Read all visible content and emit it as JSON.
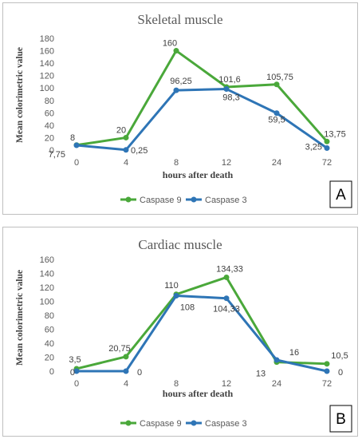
{
  "colors": {
    "caspase9": "#4aa83a",
    "caspase3": "#2e75b6"
  },
  "chart_data": [
    {
      "type": "line",
      "panel_label": "A",
      "title": "Skeletal muscle",
      "xlabel": "hours after death",
      "ylabel": "Mean colorimetric value",
      "categories": [
        "0",
        "4",
        "8",
        "12",
        "24",
        "72"
      ],
      "ylim": [
        0,
        180
      ],
      "yticks": [
        0,
        20,
        40,
        60,
        80,
        100,
        120,
        140,
        160,
        180
      ],
      "grid": false,
      "legend_position": "bottom",
      "series": [
        {
          "name": "Caspase 9",
          "values": [
            8,
            20,
            160,
            101.6,
            105.75,
            13.75
          ],
          "labels": [
            "8",
            "20",
            "160",
            "101,6",
            "105,75",
            "13,75"
          ]
        },
        {
          "name": "Caspase 3",
          "values": [
            7.75,
            0.25,
            96.25,
            98.3,
            59.5,
            3.25
          ],
          "labels": [
            "7,75",
            "0,25",
            "96,25",
            "98,3",
            "59,5",
            "3,25"
          ]
        }
      ]
    },
    {
      "type": "line",
      "panel_label": "B",
      "title": "Cardiac muscle",
      "xlabel": "hours after death",
      "ylabel": "Mean colorimetric value",
      "categories": [
        "0",
        "4",
        "8",
        "12",
        "24",
        "72"
      ],
      "ylim": [
        0,
        160
      ],
      "yticks": [
        0,
        20,
        40,
        60,
        80,
        100,
        120,
        140,
        160
      ],
      "grid": false,
      "legend_position": "bottom",
      "series": [
        {
          "name": "Caspase 9",
          "values": [
            3.5,
            20.75,
            110,
            134.33,
            13,
            10.5
          ],
          "labels": [
            "3,5",
            "20,75",
            "110",
            "134,33",
            "13",
            "10,5"
          ]
        },
        {
          "name": "Caspase 3",
          "values": [
            0,
            0,
            108,
            104.33,
            16,
            0
          ],
          "labels": [
            "0",
            "0",
            "108",
            "104,33",
            "16",
            "0"
          ]
        }
      ]
    }
  ]
}
